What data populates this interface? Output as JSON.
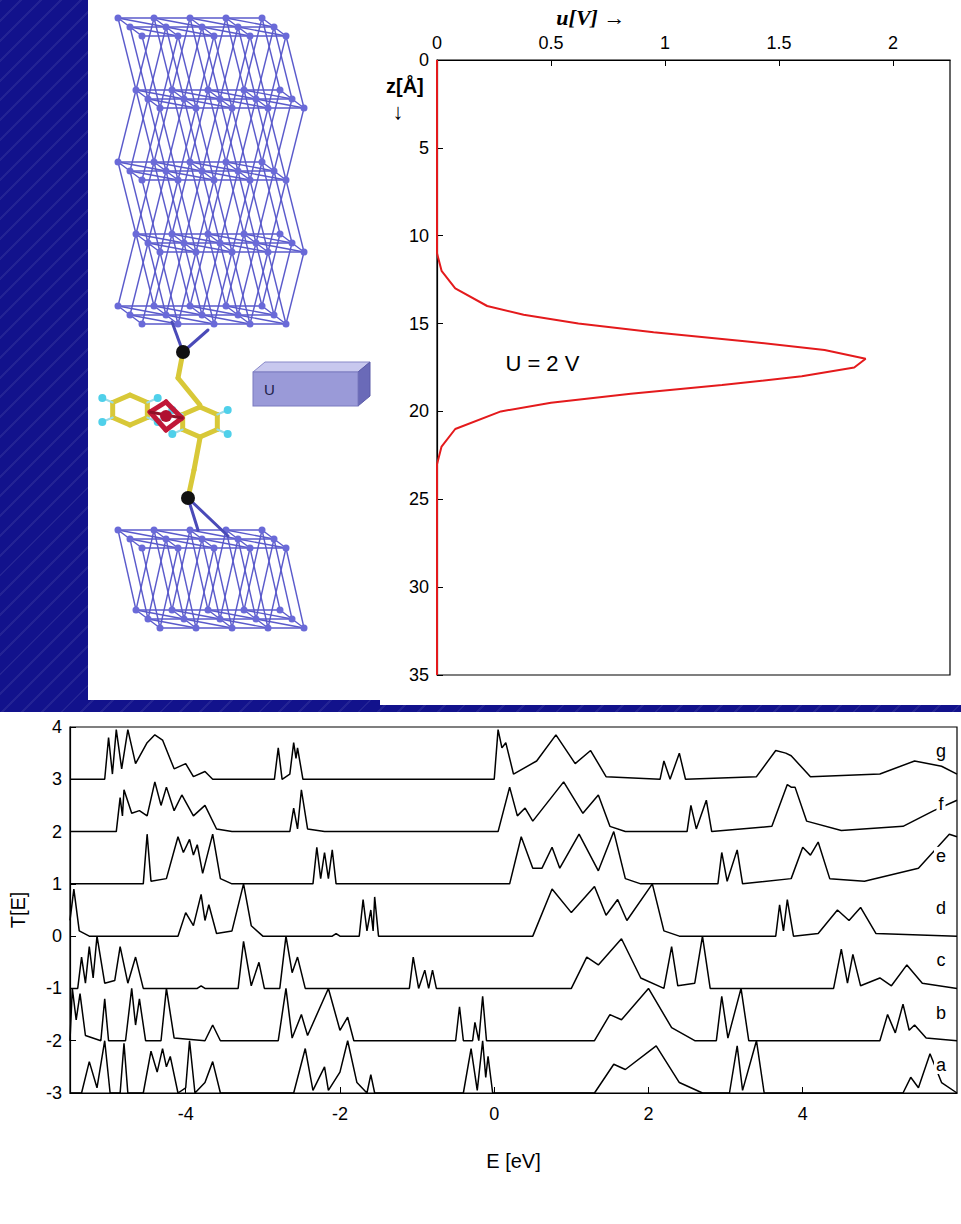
{
  "chart_data": [
    {
      "type": "line",
      "xlabel": "u[V]",
      "xlabel_arrow": "→",
      "ylabel": "z[Å]",
      "ylabel_arrow": "↓",
      "color": "#e41a1c",
      "x": [
        0,
        0,
        0.02,
        0.08,
        0.22,
        0.38,
        0.62,
        0.95,
        1.35,
        1.7,
        1.88,
        1.83,
        1.6,
        1.25,
        0.85,
        0.5,
        0.28,
        0.08,
        0.02,
        0,
        0
      ],
      "values": [
        0,
        11,
        12,
        13,
        14,
        14.5,
        15,
        15.5,
        16,
        16.5,
        17,
        17.5,
        18,
        18.5,
        19,
        19.5,
        20,
        21,
        22,
        23,
        35
      ],
      "xlim": [
        0,
        2.25
      ],
      "xticks": [
        0,
        0.5,
        1,
        1.5,
        2
      ],
      "ylim": [
        0,
        35
      ],
      "yticks": [
        0,
        5,
        10,
        15,
        20,
        25,
        30,
        35
      ],
      "annotation": {
        "text": "U = 2 V",
        "x": 0.3,
        "y": 17.3
      },
      "grid": false
    },
    {
      "type": "line",
      "xlabel": "E [eV]",
      "ylabel": "T[E]",
      "color": "#000000",
      "xlim": [
        -5.5,
        6.0
      ],
      "xticks": [
        -4,
        -2,
        0,
        2,
        4
      ],
      "ylim": [
        -3,
        4
      ],
      "yticks": [
        -3,
        -2,
        -1,
        0,
        1,
        2,
        3,
        4
      ],
      "grid": false,
      "series": [
        {
          "name": "a",
          "x": [
            -5.5,
            -5.35,
            -5.25,
            -5.15,
            -5.05,
            -4.98,
            -4.85,
            -4.8,
            -4.75,
            -4.55,
            -4.45,
            -4.37,
            -4.3,
            -4.25,
            -4.2,
            -4.1,
            -4.0,
            -3.95,
            -3.88,
            -3.75,
            -3.65,
            -3.55,
            -2.6,
            -2.45,
            -2.35,
            -2.2,
            -2.15,
            -2.0,
            -1.9,
            -1.78,
            -1.65,
            -1.6,
            -1.55,
            -0.4,
            -0.3,
            -0.22,
            -0.15,
            -0.11,
            -0.08,
            -0.02,
            1.3,
            1.55,
            1.7,
            2.1,
            2.4,
            2.7,
            3.05,
            3.15,
            3.22,
            3.4,
            3.5,
            5.3,
            5.4,
            5.5,
            5.65,
            5.8,
            6.0
          ],
          "values": [
            -3,
            -3,
            -2.4,
            -2.9,
            -2.0,
            -3,
            -3,
            -2.05,
            -3,
            -3,
            -2.2,
            -2.6,
            -2.15,
            -2.5,
            -2.3,
            -3,
            -2.9,
            -2.0,
            -3,
            -2.8,
            -2.4,
            -3,
            -3,
            -2.15,
            -2.95,
            -2.5,
            -2.95,
            -2.6,
            -2.0,
            -2.8,
            -3,
            -2.65,
            -3,
            -3,
            -2.15,
            -2.95,
            -2.0,
            -2.7,
            -2.3,
            -3,
            -3,
            -2.45,
            -2.55,
            -2.1,
            -2.8,
            -3,
            -3,
            -2.1,
            -2.95,
            -2.0,
            -3,
            -3,
            -2.7,
            -2.9,
            -2.25,
            -2.8,
            -3
          ]
        },
        {
          "name": "b",
          "x": [
            -5.5,
            -5.47,
            -5.42,
            -5.37,
            -5.3,
            -5.1,
            -5.05,
            -5.0,
            -4.78,
            -4.7,
            -4.65,
            -4.6,
            -4.52,
            -4.32,
            -4.25,
            -4.15,
            -3.75,
            -3.65,
            -3.55,
            -2.8,
            -2.7,
            -2.62,
            -2.5,
            -2.42,
            -2.15,
            -2.0,
            -1.9,
            -1.82,
            -0.5,
            -0.45,
            -0.4,
            -0.28,
            -0.25,
            -0.2,
            -0.15,
            -0.1,
            1.3,
            1.5,
            1.65,
            2.0,
            2.3,
            2.6,
            2.88,
            2.95,
            3.03,
            3.2,
            3.3,
            5.0,
            5.1,
            5.2,
            5.3,
            5.38,
            5.45,
            5.6,
            6.0
          ],
          "values": [
            -2,
            -1.0,
            -1.6,
            -1.1,
            -1.9,
            -2,
            -1.2,
            -2,
            -2,
            -1.0,
            -1.7,
            -1.2,
            -2,
            -2,
            -1.0,
            -1.95,
            -2,
            -1.7,
            -2,
            -2,
            -1.0,
            -1.95,
            -1.5,
            -1.9,
            -1.0,
            -1.8,
            -1.55,
            -2,
            -2,
            -1.35,
            -2,
            -2,
            -1.65,
            -2,
            -1.15,
            -2,
            -2,
            -1.5,
            -1.6,
            -1.0,
            -1.75,
            -2,
            -2,
            -1.15,
            -1.95,
            -1.0,
            -2,
            -2,
            -1.5,
            -1.85,
            -1.3,
            -1.8,
            -1.7,
            -1.95,
            -2
          ]
        },
        {
          "name": "c",
          "x": [
            -5.5,
            -5.4,
            -5.35,
            -5.3,
            -5.25,
            -5.2,
            -5.15,
            -5.05,
            -4.92,
            -4.85,
            -4.75,
            -4.65,
            -4.55,
            -3.85,
            -3.8,
            -3.75,
            -3.32,
            -3.25,
            -3.15,
            -3.05,
            -2.98,
            -2.78,
            -2.7,
            -2.62,
            -2.55,
            -2.45,
            -1.1,
            -1.05,
            -0.98,
            -0.9,
            -0.85,
            -0.8,
            -0.75,
            1.0,
            1.2,
            1.35,
            1.65,
            1.9,
            2.2,
            2.3,
            2.38,
            2.6,
            2.7,
            2.8,
            4.4,
            4.5,
            4.58,
            4.65,
            4.75,
            5.0,
            5.15,
            5.35,
            5.55,
            6.0
          ],
          "values": [
            -1,
            -1,
            -0.4,
            -0.9,
            -0.2,
            -0.8,
            0.0,
            -0.9,
            -0.85,
            -0.2,
            -0.9,
            -0.4,
            -1,
            -1,
            -0.95,
            -1,
            -1,
            -0.1,
            -0.95,
            -0.5,
            -1,
            -1,
            0.0,
            -0.7,
            -0.4,
            -1,
            -1,
            -0.4,
            -1,
            -0.65,
            -1,
            -0.65,
            -1,
            -1,
            -0.4,
            -0.55,
            -0.05,
            -0.8,
            -1,
            -0.2,
            -0.95,
            -0.9,
            0.0,
            -1,
            -1,
            -0.25,
            -0.9,
            -0.35,
            -0.95,
            -0.8,
            -0.95,
            -0.55,
            -0.9,
            -1
          ]
        },
        {
          "name": "d",
          "x": [
            -5.5,
            -5.45,
            -5.38,
            -5.25,
            -4.1,
            -4.0,
            -3.9,
            -3.8,
            -3.75,
            -3.7,
            -3.6,
            -3.4,
            -3.25,
            -3.15,
            -3.0,
            -2.1,
            -2.05,
            -2.0,
            -1.75,
            -1.7,
            -1.65,
            -1.6,
            -1.57,
            -1.55,
            -1.5,
            0.5,
            0.75,
            1.0,
            1.3,
            1.45,
            1.6,
            1.72,
            2.05,
            2.2,
            2.4,
            3.65,
            3.7,
            3.75,
            3.8,
            3.88,
            4.2,
            4.45,
            4.6,
            4.75,
            4.95,
            6.0
          ],
          "values": [
            0.3,
            0.9,
            0.1,
            0,
            0,
            0.45,
            0.2,
            0.8,
            0.3,
            0.6,
            0.05,
            0.1,
            1.0,
            0.2,
            0,
            0,
            0.05,
            0,
            0,
            0.7,
            0.1,
            0.5,
            0.1,
            0.75,
            0,
            0,
            0.9,
            0.45,
            0.95,
            0.4,
            0.7,
            0.3,
            1.0,
            0.1,
            0,
            0,
            0.6,
            0.1,
            0.7,
            0,
            0.05,
            0.5,
            0.3,
            0.55,
            0.05,
            0
          ]
        },
        {
          "name": "e",
          "x": [
            -5.5,
            -4.55,
            -4.5,
            -4.45,
            -4.25,
            -4.1,
            -4.03,
            -3.95,
            -3.9,
            -3.85,
            -3.78,
            -3.65,
            -3.55,
            -3.4,
            -2.35,
            -2.3,
            -2.25,
            -2.2,
            -2.15,
            -2.1,
            -2.05,
            0.2,
            0.35,
            0.5,
            0.62,
            0.75,
            0.85,
            1.1,
            1.35,
            1.55,
            1.7,
            1.9,
            2.9,
            2.95,
            3.02,
            3.15,
            3.22,
            3.85,
            4.0,
            4.1,
            4.2,
            4.35,
            4.8,
            5.5,
            5.9,
            6.0
          ],
          "values": [
            1,
            1,
            1.95,
            1.05,
            1.1,
            1.9,
            1.6,
            1.85,
            1.55,
            1.75,
            1.2,
            1.95,
            1.1,
            1,
            1,
            1.7,
            1.1,
            1.6,
            1.1,
            1.65,
            1,
            1,
            1.9,
            1.3,
            1.3,
            1.7,
            1.3,
            1.95,
            1.25,
            2.0,
            1.1,
            1,
            1,
            1.6,
            1.05,
            1.65,
            1,
            1.1,
            1.7,
            1.55,
            1.8,
            1.1,
            1.05,
            1.3,
            1.95,
            1.9
          ]
        },
        {
          "name": "f",
          "x": [
            -5.5,
            -4.9,
            -4.85,
            -4.82,
            -4.8,
            -4.7,
            -4.6,
            -4.5,
            -4.4,
            -4.32,
            -4.25,
            -4.15,
            -4.05,
            -3.9,
            -3.75,
            -3.6,
            -3.4,
            -2.65,
            -2.6,
            -2.55,
            -2.5,
            -2.42,
            -2.2,
            0.05,
            0.2,
            0.3,
            0.4,
            0.5,
            0.9,
            1.15,
            1.35,
            1.5,
            1.7,
            2.5,
            2.55,
            2.62,
            2.75,
            2.82,
            3.6,
            3.8,
            3.85,
            3.9,
            4.05,
            4.5,
            5.3,
            5.7,
            6.0
          ],
          "values": [
            2,
            2,
            2.65,
            2.3,
            2.8,
            2.35,
            2.4,
            2.3,
            2.95,
            2.5,
            2.85,
            2.4,
            2.7,
            2.3,
            2.5,
            2.05,
            2,
            2,
            2.45,
            2.05,
            2.8,
            2.05,
            2,
            2,
            2.85,
            2.3,
            2.45,
            2.2,
            2.95,
            2.35,
            2.7,
            2.1,
            2,
            2,
            2.5,
            2.05,
            2.6,
            2,
            2.1,
            2.9,
            2.85,
            2.85,
            2.2,
            2.02,
            2.1,
            2.4,
            2.6
          ]
        },
        {
          "name": "g",
          "x": [
            -5.5,
            -5.05,
            -5.0,
            -4.95,
            -4.9,
            -4.83,
            -4.75,
            -4.65,
            -4.5,
            -4.4,
            -4.3,
            -4.15,
            -4.0,
            -3.9,
            -3.75,
            -3.65,
            -2.85,
            -2.8,
            -2.75,
            -2.65,
            -2.6,
            -2.57,
            -2.55,
            -2.48,
            0.0,
            0.05,
            0.1,
            0.15,
            0.25,
            0.55,
            0.8,
            1.05,
            1.25,
            1.45,
            2.15,
            2.2,
            2.28,
            2.4,
            2.48,
            3.4,
            3.65,
            3.78,
            3.85,
            4.1,
            5.0,
            5.45,
            5.8,
            6.0
          ],
          "values": [
            3,
            3,
            3.8,
            3.1,
            3.95,
            3.2,
            3.95,
            3.3,
            3.7,
            3.85,
            3.75,
            3.2,
            3.3,
            3.05,
            3.15,
            3,
            3,
            3.6,
            3,
            3.1,
            3.7,
            3.4,
            3.6,
            3,
            3,
            3.95,
            3.6,
            3.7,
            3.1,
            3.35,
            3.85,
            3.3,
            3.55,
            3.05,
            3,
            3.35,
            3,
            3.5,
            3,
            3.05,
            3.55,
            3.5,
            3.45,
            3.05,
            3.1,
            3.35,
            3.25,
            3.1
          ]
        }
      ]
    }
  ],
  "diagram": {
    "gate_label": "U"
  }
}
